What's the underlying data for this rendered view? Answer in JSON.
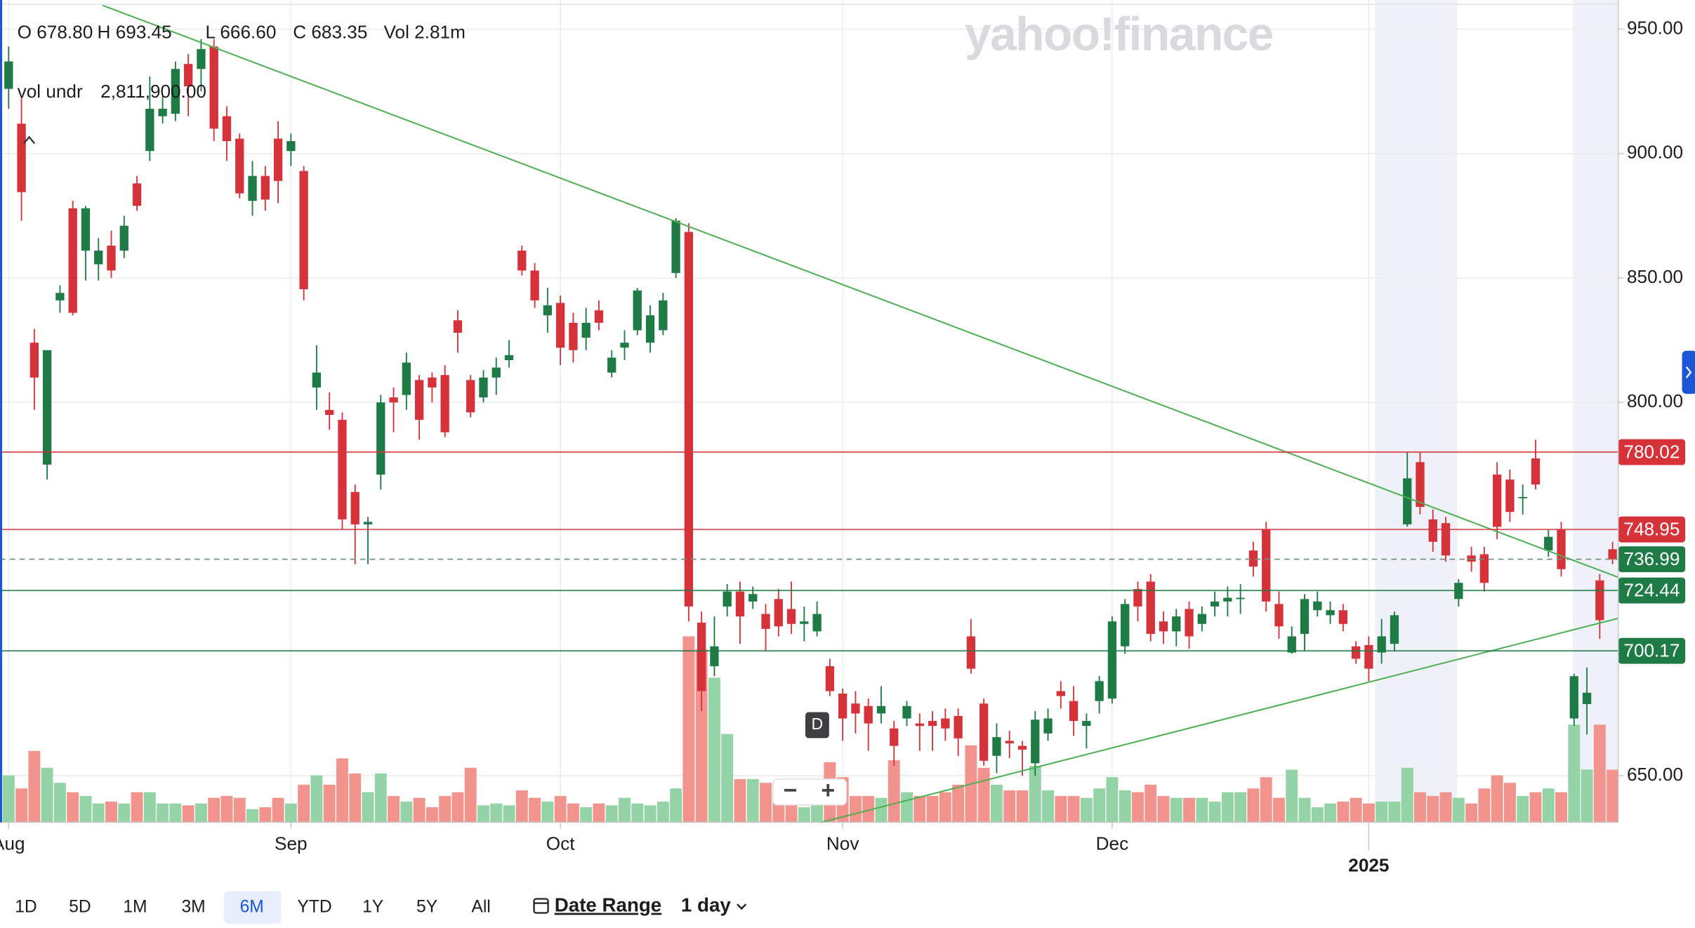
{
  "chart_data": {
    "type": "candlestick",
    "watermark": "yahoo!finance",
    "readout": [
      "O 678.80",
      "H 693.45",
      "L 666.60",
      "C 683.35",
      "Vol 2.81m"
    ],
    "volume_readout": {
      "label": "vol undr",
      "value": "2,811,900.00"
    },
    "categories": [
      "Aug",
      null,
      null,
      null,
      null,
      null,
      null,
      null,
      null,
      null,
      null,
      null,
      null,
      null,
      null,
      null,
      null,
      null,
      null,
      null,
      null,
      null,
      "Sep",
      null,
      null,
      null,
      null,
      null,
      null,
      null,
      null,
      null,
      null,
      null,
      null,
      null,
      null,
      null,
      null,
      null,
      null,
      null,
      null,
      "Oct",
      null,
      null,
      null,
      null,
      null,
      null,
      null,
      null,
      null,
      null,
      null,
      null,
      null,
      null,
      null,
      null,
      null,
      null,
      null,
      null,
      null,
      "Nov",
      null,
      null,
      null,
      null,
      null,
      null,
      null,
      null,
      null,
      null,
      null,
      null,
      null,
      null,
      null,
      null,
      null,
      null,
      null,
      null,
      "Dec",
      null,
      null,
      null,
      null,
      null,
      null,
      null,
      null,
      null,
      null,
      null,
      null,
      null,
      null,
      null,
      null,
      null,
      null,
      null,
      "2025",
      null,
      null,
      null,
      null,
      null,
      null,
      null,
      null,
      null,
      null,
      null,
      null,
      null,
      null,
      null,
      null,
      null,
      null,
      null
    ],
    "open": [
      926,
      912,
      824,
      775,
      841,
      878,
      861,
      855.5,
      863,
      861,
      888,
      901,
      915,
      916,
      936,
      934,
      943,
      915,
      906,
      881,
      891,
      906,
      901,
      893,
      806,
      797,
      793,
      764,
      751,
      771,
      802,
      803,
      809,
      810,
      811,
      833,
      809,
      802,
      810,
      817,
      861,
      853,
      835,
      840,
      832,
      826,
      837,
      812,
      822,
      829,
      824,
      829,
      852,
      868.5,
      711.5,
      694,
      718,
      724,
      720,
      715,
      721,
      717,
      711,
      708,
      694,
      683,
      679,
      678,
      675,
      669,
      673,
      671,
      672,
      673,
      674,
      706,
      679,
      658,
      664,
      662,
      655,
      667,
      684,
      680,
      670,
      680,
      681,
      702,
      725,
      728,
      712,
      708,
      717,
      711,
      718,
      720,
      721,
      740.5,
      749,
      719,
      699.5,
      707,
      716.5,
      714.5,
      716.5,
      702,
      702.5,
      699.5,
      703,
      751,
      776,
      753,
      751.5,
      721,
      738.5,
      739,
      771,
      769,
      762,
      777.5,
      740.5,
      749,
      673,
      678.8,
      728.5,
      741
    ],
    "high": [
      943,
      923,
      829.5,
      821,
      847,
      881,
      879,
      866,
      869,
      875,
      891,
      931,
      923,
      937,
      940,
      946,
      946,
      919,
      908,
      897,
      895,
      913,
      908,
      895,
      823,
      804,
      796,
      767,
      754,
      803,
      806,
      820,
      811,
      812,
      815,
      837,
      811,
      813,
      818,
      825,
      863,
      856,
      846,
      843,
      836,
      838,
      841,
      821,
      829,
      846,
      839,
      844,
      874,
      872,
      716,
      714,
      727,
      728,
      726,
      719,
      725,
      728,
      718,
      720,
      697,
      685,
      684,
      681,
      686,
      672,
      680,
      675,
      676,
      677,
      677,
      713,
      681,
      671,
      668,
      664,
      676,
      677,
      688,
      686,
      675,
      690,
      714,
      721,
      728,
      731,
      716,
      717,
      720,
      718,
      724,
      726,
      727,
      744,
      752,
      724,
      710,
      723,
      724,
      720,
      719,
      704,
      706,
      713,
      716,
      780,
      780,
      757,
      754,
      729,
      742,
      742,
      776,
      773,
      767,
      785,
      749,
      752,
      691,
      693.45,
      731,
      744
    ],
    "low": [
      918,
      873,
      797,
      769,
      836,
      835,
      849,
      849,
      850,
      858,
      877,
      897,
      912,
      913,
      915,
      925,
      905,
      897,
      882,
      875,
      877,
      880,
      895,
      841,
      797,
      789,
      749,
      735,
      735,
      765,
      788,
      797,
      785,
      800,
      786,
      820,
      794,
      800,
      803,
      814,
      851,
      838,
      828,
      815,
      816,
      821,
      829,
      810,
      817,
      827,
      820,
      827,
      850,
      712,
      676,
      690,
      714,
      703,
      717,
      700,
      706,
      707,
      704,
      706,
      682,
      664,
      667,
      660,
      671,
      654,
      670,
      660,
      660,
      664,
      658,
      691,
      654,
      651,
      657,
      650,
      650,
      664,
      677,
      666,
      661,
      675,
      679,
      699,
      712,
      704,
      703,
      702,
      701,
      708,
      714,
      714,
      715,
      730,
      716,
      705,
      699,
      700,
      714,
      711,
      708,
      695,
      688,
      695,
      700,
      750,
      755,
      740,
      736,
      718,
      732,
      724,
      745,
      752,
      755,
      765,
      738,
      730,
      670,
      666.6,
      705,
      735
    ],
    "close": [
      937,
      884.5,
      810,
      821,
      844,
      836,
      878,
      861,
      853,
      871,
      879,
      918,
      918,
      934,
      927,
      942,
      910,
      905,
      884,
      891,
      881.5,
      889,
      905,
      845.5,
      812,
      795,
      753,
      751,
      752,
      800,
      800,
      816,
      793,
      806,
      788,
      828,
      796,
      810,
      814,
      819,
      853,
      841,
      839,
      822,
      821,
      832,
      832,
      818,
      824,
      845,
      835,
      841,
      873,
      718,
      684,
      702,
      724,
      714,
      723,
      709,
      710,
      711,
      712,
      715,
      684,
      673,
      675,
      671,
      678,
      662,
      678,
      670,
      670,
      669,
      665,
      693,
      656,
      665.5,
      663,
      660.5,
      672.5,
      673,
      682,
      672,
      672,
      688,
      712,
      719,
      718,
      707,
      708,
      714,
      706,
      715,
      720,
      721.5,
      721.5,
      734,
      720,
      710,
      706,
      721,
      720,
      716.5,
      711,
      697,
      693,
      706,
      714.5,
      769.5,
      758,
      744,
      738.5,
      727.5,
      736,
      727.5,
      750,
      756,
      762,
      767,
      746,
      733,
      690,
      683.35,
      712.5,
      736.99
    ],
    "volume": [
      2.5,
      1.8,
      3.8,
      2.9,
      2.1,
      1.6,
      1.4,
      1.0,
      1.1,
      1.0,
      1.6,
      1.6,
      1.0,
      1.0,
      0.9,
      1.0,
      1.3,
      1.4,
      1.3,
      0.7,
      0.8,
      1.3,
      1.0,
      2.0,
      2.5,
      2.0,
      3.4,
      2.6,
      1.6,
      2.6,
      1.4,
      1.1,
      1.3,
      0.8,
      1.4,
      1.6,
      2.9,
      0.9,
      1.0,
      0.9,
      1.7,
      1.3,
      1.1,
      1.4,
      1.0,
      0.8,
      1.0,
      0.9,
      1.3,
      1.0,
      0.9,
      1.1,
      1.8,
      9.9,
      9.2,
      7.7,
      4.7,
      2.3,
      2.3,
      2.1,
      2.0,
      1.4,
      0.8,
      1.3,
      3.2,
      2.4,
      1.4,
      1.4,
      1.3,
      3.3,
      1.6,
      1.4,
      1.4,
      1.6,
      2.0,
      4.1,
      2.9,
      2.0,
      1.7,
      1.7,
      3.0,
      1.7,
      1.4,
      1.4,
      1.3,
      1.8,
      2.4,
      1.7,
      1.6,
      2.0,
      1.4,
      1.3,
      1.3,
      1.3,
      1.1,
      1.6,
      1.6,
      1.8,
      2.4,
      1.3,
      2.8,
      1.3,
      0.8,
      1.0,
      1.1,
      1.3,
      1.0,
      1.1,
      1.1,
      2.9,
      1.6,
      1.4,
      1.6,
      1.3,
      1.0,
      1.8,
      2.5,
      2.1,
      1.4,
      1.6,
      1.8,
      1.6,
      5.2,
      2.81,
      5.2,
      2.8
    ],
    "up_color": "#1e7b45",
    "down_color": "#d6323a",
    "volume_up_color": "#94d3a6",
    "volume_down_color": "#f2948d",
    "ylim": [
      631.3,
      961.7
    ],
    "yticks": [
      {
        "value": 650,
        "label": "650.00"
      },
      {
        "value": 800,
        "label": "800.00"
      },
      {
        "value": 850,
        "label": "850.00"
      },
      {
        "value": 900,
        "label": "900.00"
      },
      {
        "value": 950,
        "label": "950.00"
      }
    ],
    "grid": true,
    "price_lines": [
      {
        "value": 780.02,
        "color": "#d6323a"
      },
      {
        "value": 748.95,
        "color": "#d6323a"
      },
      {
        "value": 736.99,
        "color": "#1e7b45",
        "dashed": true
      },
      {
        "value": 724.44,
        "color": "#1e7b45"
      },
      {
        "value": 700.17,
        "color": "#1e7b45"
      }
    ]
  },
  "toolbar": {
    "ranges": [
      "1D",
      "5D",
      "1M",
      "3M",
      "6M",
      "YTD",
      "1Y",
      "5Y",
      "All"
    ],
    "selected_index": 4,
    "date_range": "Date Range",
    "interval": "1 day"
  },
  "badges": {
    "marker": "D",
    "zoom_out": "−",
    "zoom_in": "+"
  }
}
